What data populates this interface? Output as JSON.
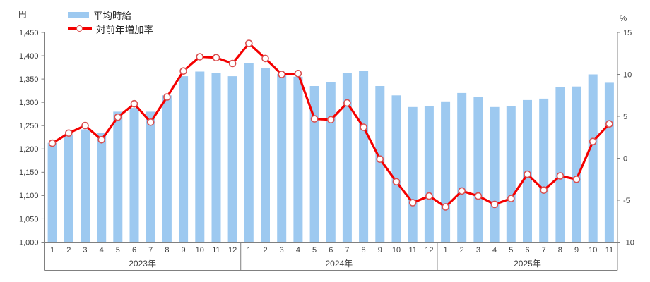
{
  "chart_data": {
    "type": "combo",
    "title": "",
    "months": [
      1,
      2,
      3,
      4,
      5,
      6,
      7,
      8,
      9,
      10,
      11,
      12,
      1,
      2,
      3,
      4,
      5,
      6,
      7,
      8,
      9,
      10,
      11,
      12,
      1,
      2,
      3,
      4,
      5,
      6,
      7,
      8,
      9,
      10,
      11
    ],
    "year_groups": [
      {
        "label": "2023年",
        "months": 12
      },
      {
        "label": "2024年",
        "months": 12
      },
      {
        "label": "2025年",
        "months": 11
      }
    ],
    "series": [
      {
        "name": "平均時給",
        "type": "bar",
        "axis": "left",
        "unit": "円",
        "color": "#9DC9F0",
        "values": [
          1213,
          1231,
          1242,
          1235,
          1280,
          1288,
          1280,
          1315,
          1356,
          1366,
          1363,
          1356,
          1385,
          1374,
          1361,
          1355,
          1335,
          1343,
          1363,
          1367,
          1335,
          1315,
          1290,
          1292,
          1302,
          1320,
          1312,
          1290,
          1292,
          1305,
          1308,
          1333,
          1334,
          1360,
          1342
        ]
      },
      {
        "name": "対前年増加率",
        "type": "line",
        "axis": "right",
        "unit": "%",
        "color": "#F40000",
        "marker_fill": "#FFFFFF",
        "marker_stroke": "#D94F4F",
        "values": [
          1.8,
          3.0,
          3.9,
          2.2,
          4.9,
          6.5,
          4.3,
          7.3,
          10.4,
          12.1,
          12.0,
          11.3,
          13.7,
          11.9,
          10.0,
          10.1,
          4.7,
          4.6,
          6.6,
          3.7,
          -0.1,
          -2.8,
          -5.3,
          -4.5,
          -5.8,
          -3.9,
          -4.5,
          -5.5,
          -4.8,
          -1.9,
          -3.8,
          -2.1,
          -2.5,
          2.0,
          4.1
        ]
      }
    ],
    "left_axis": {
      "unit": "円",
      "min": 1000,
      "max": 1450,
      "step": 50
    },
    "right_axis": {
      "unit": "%",
      "min": -10,
      "max": 15,
      "step": 5
    },
    "legend_position": "top-left",
    "grid": false,
    "style": {
      "axis_color": "#808080",
      "text_color": "#3F3F3F",
      "background": "#FFFFFF"
    }
  }
}
